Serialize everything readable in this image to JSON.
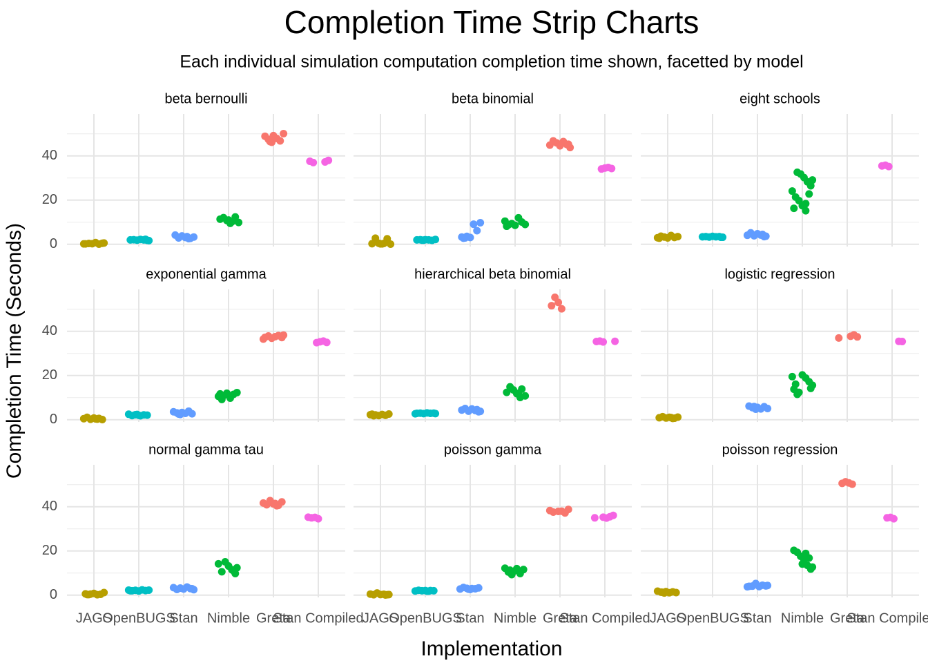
{
  "chart_data": {
    "type": "strip",
    "title": "Completion Time Strip Charts",
    "subtitle": "Each individual simulation computation completion time shown, facetted by model",
    "x_label": "Implementation",
    "y_label": "Completion Time (Seconds)",
    "categories": [
      "JAGS",
      "OpenBUGS",
      "Stan",
      "Nimble",
      "Greta",
      "Stan Compiled"
    ],
    "colors": [
      "#B79F00",
      "#00BFC4",
      "#619CFF",
      "#00BA38",
      "#F8766D",
      "#F564E3"
    ],
    "ylim": [
      -1,
      59
    ],
    "yticks": [
      0,
      20,
      40
    ],
    "minor_yticks": [
      10,
      30,
      50
    ],
    "grid": true,
    "facets": [
      {
        "title": "beta bernoulli",
        "values": [
          [
            0.2,
            0.5,
            0.1,
            0.8,
            0.3,
            0.4,
            0.2,
            0.6
          ],
          [
            1.8,
            2.0,
            2.2,
            1.9,
            2.1,
            2.0,
            1.7,
            2.3
          ],
          [
            2.6,
            3.1,
            3.8,
            2.9,
            4.2,
            3.3,
            2.7,
            3.5
          ],
          [
            9.5,
            10.8,
            12.1,
            11.4,
            9.9,
            12.4,
            10.2,
            11.0
          ],
          [
            46.2,
            47.5,
            48.9,
            50.1,
            46.8,
            47.9,
            49.2,
            46.5
          ],
          [
            37.0,
            37.6,
            38.0,
            37.3
          ]
        ]
      },
      {
        "title": "beta binomial",
        "values": [
          [
            0.2,
            0.5,
            2.8,
            0.3,
            0.1,
            2.5,
            0.4,
            0.2
          ],
          [
            1.9,
            2.1,
            2.0,
            2.2,
            1.8,
            2.0,
            2.1,
            1.9
          ],
          [
            2.9,
            3.3,
            9.8,
            6.2,
            9.1,
            3.1,
            3.6,
            2.8
          ],
          [
            8.2,
            9.0,
            10.1,
            12.0,
            8.6,
            9.4,
            8.8,
            10.5
          ],
          [
            43.8,
            45.2,
            46.5,
            44.6,
            45.9,
            46.8,
            44.9,
            45.3
          ],
          [
            34.3,
            34.8,
            34.5,
            34.1
          ]
        ]
      },
      {
        "title": "eight schools",
        "values": [
          [
            2.8,
            3.5,
            3.1,
            4.0,
            2.9,
            3.3,
            3.7,
            3.0
          ],
          [
            3.2,
            3.5,
            3.4,
            3.6,
            3.3,
            3.5,
            3.4,
            3.2
          ],
          [
            3.5,
            4.2,
            4.8,
            3.9,
            5.2,
            4.1,
            3.7,
            4.5
          ],
          [
            15.2,
            17.5,
            19.8,
            21.4,
            24.1,
            26.5,
            28.3,
            30.2,
            31.8,
            32.6,
            16.3,
            29.1,
            22.8,
            18.4
          ],
          [],
          [
            35.2,
            35.8,
            35.5
          ]
        ]
      },
      {
        "title": "exponential gamma",
        "values": [
          [
            0.3,
            0.8,
            0.2,
            1.1,
            0.5,
            0.1,
            0.6,
            0.4
          ],
          [
            2.0,
            2.3,
            1.9,
            2.5,
            2.1,
            2.2,
            1.8,
            2.4
          ],
          [
            2.4,
            3.1,
            3.6,
            2.7,
            3.9,
            2.9,
            3.3,
            2.6
          ],
          [
            9.2,
            10.6,
            12.3,
            11.5,
            9.8,
            12.0,
            10.9,
            11.7
          ],
          [
            36.5,
            37.2,
            38.1,
            37.6,
            36.9,
            37.9,
            37.3,
            38.3
          ],
          [
            35.0,
            35.6,
            35.3,
            34.9
          ]
        ]
      },
      {
        "title": "hierarchical beta binomial",
        "values": [
          [
            1.8,
            2.3,
            2.6,
            2.0,
            2.4,
            1.9,
            2.2,
            2.5
          ],
          [
            2.7,
            3.0,
            2.9,
            3.1,
            2.8,
            3.0,
            2.9,
            2.8
          ],
          [
            3.6,
            4.2,
            4.9,
            3.9,
            5.1,
            4.4,
            3.8,
            4.6
          ],
          [
            10.1,
            11.8,
            13.5,
            14.9,
            12.4,
            10.8,
            13.9,
            12.0
          ],
          [
            50.2,
            53.1,
            55.4,
            51.6
          ],
          [
            35.2,
            35.6,
            35.4,
            35.5
          ]
        ]
      },
      {
        "title": "logistic regression",
        "values": [
          [
            0.6,
            1.1,
            0.8,
            1.4,
            0.9,
            1.2,
            0.7,
            1.0
          ],
          [],
          [
            4.8,
            5.5,
            6.2,
            5.1,
            5.9,
            4.9,
            5.6,
            6.0
          ],
          [
            11.5,
            13.8,
            15.6,
            17.2,
            18.9,
            20.3,
            12.4,
            16.1,
            19.5,
            14.2
          ],
          [
            37.0,
            37.5,
            38.4,
            37.8
          ],
          [
            35.4,
            35.5
          ]
        ]
      },
      {
        "title": "normal gamma tau",
        "values": [
          [
            0.3,
            0.6,
            1.2,
            0.4,
            0.2,
            0.8,
            0.5,
            0.3
          ],
          [
            2.0,
            2.3,
            2.1,
            2.4,
            1.9,
            2.2,
            2.0,
            2.3
          ],
          [
            2.5,
            3.0,
            3.7,
            2.8,
            3.2,
            2.6,
            3.4,
            2.9
          ],
          [
            9.8,
            11.5,
            13.2,
            15.1,
            10.6,
            14.2,
            12.4,
            11.0
          ],
          [
            40.5,
            41.3,
            42.8,
            40.9,
            41.7,
            42.2,
            40.7,
            41.5
          ],
          [
            34.6,
            35.2,
            35.0,
            35.3
          ]
        ]
      },
      {
        "title": "poisson gamma",
        "values": [
          [
            0.2,
            0.4,
            0.3,
            1.0,
            0.2,
            0.5,
            0.3,
            0.1
          ],
          [
            1.8,
            2.1,
            2.0,
            2.2,
            1.9,
            2.0,
            2.1,
            1.8
          ],
          [
            2.6,
            3.1,
            3.5,
            2.8,
            3.3,
            2.9,
            3.0,
            2.7
          ],
          [
            9.3,
            10.5,
            12.2,
            11.6,
            9.8,
            12.0,
            10.7,
            11.3
          ],
          [
            37.6,
            38.3,
            38.8,
            37.2,
            38.0,
            37.9
          ],
          [
            35.0,
            36.1,
            35.5,
            34.9,
            35.3
          ]
        ]
      },
      {
        "title": "poisson regression",
        "values": [
          [
            1.0,
            1.4,
            1.8,
            1.2,
            1.5,
            1.1,
            1.6,
            1.3
          ],
          [],
          [
            3.8,
            4.2,
            4.5,
            3.9,
            5.3,
            4.1,
            4.0,
            4.4
          ],
          [
            11.8,
            13.5,
            15.9,
            17.6,
            19.4,
            20.3,
            12.7,
            16.8,
            18.9,
            14.1
          ],
          [
            50.2,
            50.8,
            51.3,
            50.6
          ],
          [
            34.6,
            35.2,
            35.0
          ]
        ]
      }
    ]
  }
}
